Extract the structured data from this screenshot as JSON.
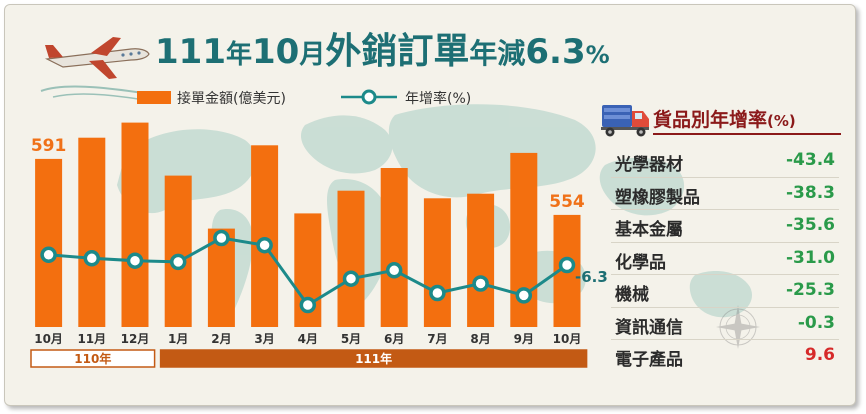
{
  "title": {
    "year": "111",
    "year_unit": "年",
    "month": "10",
    "month_unit": "月",
    "main": "外銷訂單",
    "change_label": "年減",
    "change_value": "6.3",
    "change_unit": "%"
  },
  "colors": {
    "bar": "#f36f0f",
    "line": "#1c8a8a",
    "title": "#1d6f74",
    "negative": "#2a9a4a",
    "positive": "#d62a2a",
    "goods_title": "#8b1a1a",
    "map": "#c6dcd3"
  },
  "chart_data": {
    "type": "bar",
    "categories": [
      "10月",
      "11月",
      "12月",
      "1月",
      "2月",
      "3月",
      "4月",
      "5月",
      "6月",
      "7月",
      "8月",
      "9月",
      "10月"
    ],
    "series": [
      {
        "name": "接單金額(億美元)",
        "type": "bar",
        "values": [
          591,
          605,
          615,
          580,
          545,
          600,
          555,
          570,
          585,
          565,
          568,
          595,
          554
        ]
      },
      {
        "name": "年增率(%)",
        "type": "line",
        "values": [
          -2.0,
          -3.5,
          -4.5,
          -5.0,
          5.0,
          2.0,
          -23.0,
          -12.0,
          -8.5,
          -18.0,
          -14.0,
          -19.0,
          -6.3
        ]
      }
    ],
    "bar_labels": [
      {
        "index": 0,
        "text": "591"
      },
      {
        "index": 12,
        "text": "554"
      }
    ],
    "line_labels": [
      {
        "index": 12,
        "text": "-6.3"
      }
    ],
    "year_groups": [
      {
        "label": "110年",
        "start": 0,
        "end": 2
      },
      {
        "label": "111年",
        "start": 3,
        "end": 12
      }
    ],
    "legend": {
      "placement": "top"
    }
  },
  "goods": {
    "title": "貨品別年增率",
    "unit": "(%)",
    "rows": [
      {
        "name": "光學器材",
        "value": "-43.4",
        "sign": "negative"
      },
      {
        "name": "塑橡膠製品",
        "value": "-38.3",
        "sign": "negative"
      },
      {
        "name": "基本金屬",
        "value": "-35.6",
        "sign": "negative"
      },
      {
        "name": "化學品",
        "value": "-31.0",
        "sign": "negative"
      },
      {
        "name": "機械",
        "value": "-25.3",
        "sign": "negative"
      },
      {
        "name": "資訊通信",
        "value": "-0.3",
        "sign": "negative"
      },
      {
        "name": "電子產品",
        "value": "9.6",
        "sign": "positive"
      }
    ]
  },
  "icons": {
    "title_decoration": "airplane-icon",
    "goods_decoration": "truck-icon",
    "table_watermark": "compass-rose-icon"
  }
}
